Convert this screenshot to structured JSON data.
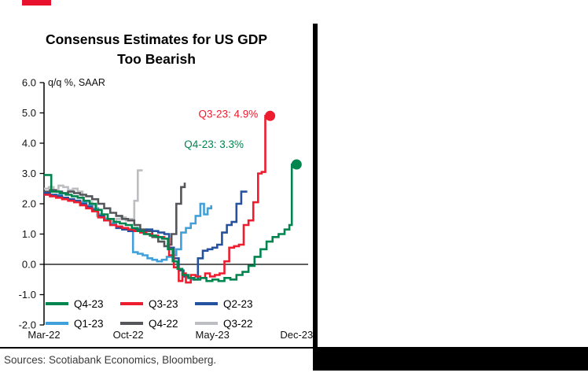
{
  "accent": {
    "red_mark_color": "#E8112D"
  },
  "footer": {
    "sources": "Sources: Scotiabank Economics, Bloomberg."
  },
  "chart_data": {
    "type": "line",
    "title": "Consensus Estimates for US GDP Too Bearish",
    "title_lines": [
      "Consensus Estimates for US GDP",
      "Too Bearish"
    ],
    "unit_label": "q/q %, SAAR",
    "ylim": [
      -2.0,
      6.0
    ],
    "yticks": [
      "6.0",
      "5.0",
      "4.0",
      "3.0",
      "2.0",
      "1.0",
      "0.0",
      "-1.0",
      "-2.0"
    ],
    "grid": false,
    "legend_position": "inside-bottom",
    "x_axis": {
      "tick_labels": [
        "Mar-22",
        "Oct-22",
        "May-23",
        "Dec-23"
      ],
      "tick_months": [
        0,
        7,
        14,
        21
      ],
      "months_total": 21,
      "note": "x = months since Mar-2022 (date the consensus estimate was recorded)"
    },
    "series": [
      {
        "name": "Q4-23",
        "color": "#00854F",
        "end_marker": true,
        "points": [
          [
            0,
            2.95
          ],
          [
            0.6,
            2.4
          ],
          [
            1.3,
            2.35
          ],
          [
            1.8,
            2.3
          ],
          [
            2.3,
            2.25
          ],
          [
            2.8,
            2.2
          ],
          [
            3.3,
            2.1
          ],
          [
            3.8,
            2.0
          ],
          [
            4.3,
            1.8
          ],
          [
            4.8,
            1.65
          ],
          [
            5.3,
            1.5
          ],
          [
            5.8,
            1.4
          ],
          [
            6.3,
            1.35
          ],
          [
            6.8,
            1.3
          ],
          [
            7.3,
            1.2
          ],
          [
            7.8,
            1.1
          ],
          [
            8.3,
            1.0
          ],
          [
            8.8,
            0.95
          ],
          [
            9.3,
            0.9
          ],
          [
            9.8,
            0.85
          ],
          [
            10.3,
            0.5
          ],
          [
            10.7,
            0.1
          ],
          [
            11.1,
            -0.15
          ],
          [
            11.5,
            -0.35
          ],
          [
            12,
            -0.45
          ],
          [
            12.5,
            -0.5
          ],
          [
            13,
            -0.45
          ],
          [
            13.5,
            -0.55
          ],
          [
            14,
            -0.5
          ],
          [
            14.5,
            -0.55
          ],
          [
            15,
            -0.45
          ],
          [
            15.5,
            -0.5
          ],
          [
            16,
            -0.35
          ],
          [
            16.5,
            -0.25
          ],
          [
            17,
            -0.05
          ],
          [
            17.5,
            0.25
          ],
          [
            18,
            0.5
          ],
          [
            18.5,
            0.75
          ],
          [
            19,
            0.9
          ],
          [
            19.5,
            1.0
          ],
          [
            20,
            1.15
          ],
          [
            20.4,
            1.3
          ],
          [
            20.6,
            3.3
          ],
          [
            21,
            3.3
          ]
        ]
      },
      {
        "name": "Q3-23",
        "color": "#ED1C2E",
        "end_marker": true,
        "points": [
          [
            0,
            2.3
          ],
          [
            0.5,
            2.25
          ],
          [
            1,
            2.2
          ],
          [
            1.5,
            2.15
          ],
          [
            2,
            2.1
          ],
          [
            2.5,
            2.05
          ],
          [
            3,
            1.95
          ],
          [
            3.5,
            1.85
          ],
          [
            4,
            1.75
          ],
          [
            4.5,
            1.55
          ],
          [
            5,
            1.45
          ],
          [
            5.5,
            1.3
          ],
          [
            6,
            1.25
          ],
          [
            6.5,
            1.2
          ],
          [
            7,
            1.15
          ],
          [
            7.5,
            1.1
          ],
          [
            8,
            1.05
          ],
          [
            8.5,
            1.0
          ],
          [
            9,
            0.95
          ],
          [
            9.5,
            0.9
          ],
          [
            10,
            0.85
          ],
          [
            10.4,
            0.3
          ],
          [
            10.8,
            -0.1
          ],
          [
            11.2,
            -0.55
          ],
          [
            11.5,
            -0.3
          ],
          [
            11.8,
            -0.6
          ],
          [
            12.2,
            -0.35
          ],
          [
            12.6,
            -0.4
          ],
          [
            13,
            -0.45
          ],
          [
            13.4,
            -0.3
          ],
          [
            13.8,
            -0.4
          ],
          [
            14.2,
            -0.35
          ],
          [
            14.6,
            -0.3
          ],
          [
            15,
            0.1
          ],
          [
            15.4,
            0.55
          ],
          [
            15.8,
            0.6
          ],
          [
            16.2,
            0.65
          ],
          [
            16.6,
            1.3
          ],
          [
            17,
            1.45
          ],
          [
            17.4,
            2.05
          ],
          [
            17.8,
            3.0
          ],
          [
            18.1,
            3.05
          ],
          [
            18.4,
            4.9
          ],
          [
            18.8,
            4.9
          ]
        ]
      },
      {
        "name": "Q2-23",
        "color": "#24529E",
        "end_marker": false,
        "points": [
          [
            0,
            2.35
          ],
          [
            0.5,
            2.3
          ],
          [
            1,
            2.25
          ],
          [
            1.5,
            2.2
          ],
          [
            2,
            2.15
          ],
          [
            2.5,
            2.1
          ],
          [
            3,
            2.0
          ],
          [
            3.5,
            1.9
          ],
          [
            4,
            1.8
          ],
          [
            4.5,
            1.6
          ],
          [
            5,
            1.45
          ],
          [
            5.5,
            1.3
          ],
          [
            6,
            1.2
          ],
          [
            6.5,
            1.15
          ],
          [
            7,
            1.1
          ],
          [
            7.5,
            1.15
          ],
          [
            8,
            1.1
          ],
          [
            8.5,
            1.15
          ],
          [
            9,
            1.1
          ],
          [
            9.5,
            1.05
          ],
          [
            10,
            1.0
          ],
          [
            10.4,
            0.55
          ],
          [
            10.8,
            0.2
          ],
          [
            11.2,
            -0.2
          ],
          [
            11.6,
            -0.4
          ],
          [
            12,
            -0.45
          ],
          [
            12.4,
            -0.5
          ],
          [
            12.8,
            0.2
          ],
          [
            13.2,
            0.45
          ],
          [
            13.6,
            0.5
          ],
          [
            14,
            0.55
          ],
          [
            14.4,
            0.65
          ],
          [
            14.8,
            1.05
          ],
          [
            15.2,
            1.3
          ],
          [
            15.6,
            1.4
          ],
          [
            16,
            2.0
          ],
          [
            16.4,
            2.4
          ],
          [
            16.9,
            2.4
          ]
        ]
      },
      {
        "name": "Q1-23",
        "color": "#41A0D9",
        "end_marker": false,
        "points": [
          [
            0,
            2.3
          ],
          [
            0.5,
            2.25
          ],
          [
            1,
            2.3
          ],
          [
            1.5,
            2.2
          ],
          [
            2,
            2.15
          ],
          [
            2.5,
            2.1
          ],
          [
            3,
            2.05
          ],
          [
            3.5,
            1.95
          ],
          [
            4,
            1.85
          ],
          [
            4.5,
            1.65
          ],
          [
            5,
            1.5
          ],
          [
            5.5,
            1.35
          ],
          [
            6,
            1.25
          ],
          [
            6.5,
            1.2
          ],
          [
            7,
            1.15
          ],
          [
            7.4,
            0.4
          ],
          [
            7.8,
            0.35
          ],
          [
            8.2,
            0.3
          ],
          [
            8.6,
            0.2
          ],
          [
            9,
            0.15
          ],
          [
            9.4,
            0.1
          ],
          [
            9.8,
            0.15
          ],
          [
            10.2,
            0.25
          ],
          [
            10.6,
            0.3
          ],
          [
            11,
            0.5
          ],
          [
            11.4,
            1.05
          ],
          [
            11.8,
            1.2
          ],
          [
            12.2,
            1.35
          ],
          [
            12.6,
            1.6
          ],
          [
            13,
            2.0
          ],
          [
            13.3,
            1.65
          ],
          [
            13.6,
            1.85
          ],
          [
            13.9,
            1.95
          ]
        ]
      },
      {
        "name": "Q4-22",
        "color": "#55565A",
        "end_marker": false,
        "points": [
          [
            0,
            2.4
          ],
          [
            0.5,
            2.45
          ],
          [
            1,
            2.4
          ],
          [
            1.5,
            2.35
          ],
          [
            2,
            2.4
          ],
          [
            2.5,
            2.35
          ],
          [
            3,
            2.3
          ],
          [
            3.5,
            2.25
          ],
          [
            4,
            2.15
          ],
          [
            4.5,
            2.0
          ],
          [
            5,
            1.85
          ],
          [
            5.5,
            1.7
          ],
          [
            6,
            1.6
          ],
          [
            6.5,
            1.5
          ],
          [
            7,
            1.45
          ],
          [
            7.5,
            1.3
          ],
          [
            8,
            1.15
          ],
          [
            8.5,
            1.1
          ],
          [
            9,
            0.9
          ],
          [
            9.5,
            0.75
          ],
          [
            10,
            0.6
          ],
          [
            10.3,
            0.65
          ],
          [
            10.6,
            1.0
          ],
          [
            11,
            2.0
          ],
          [
            11.4,
            2.55
          ],
          [
            11.7,
            2.7
          ]
        ]
      },
      {
        "name": "Q3-22",
        "color": "#BDBEC1",
        "end_marker": false,
        "points": [
          [
            0,
            2.5
          ],
          [
            0.4,
            2.55
          ],
          [
            0.8,
            2.45
          ],
          [
            1.2,
            2.6
          ],
          [
            1.6,
            2.55
          ],
          [
            2,
            2.45
          ],
          [
            2.4,
            2.5
          ],
          [
            2.8,
            2.4
          ],
          [
            3.2,
            2.1
          ],
          [
            3.6,
            2.05
          ],
          [
            4,
            1.95
          ],
          [
            4.4,
            1.6
          ],
          [
            4.8,
            1.55
          ],
          [
            5.2,
            1.45
          ],
          [
            5.6,
            1.4
          ],
          [
            6,
            1.5
          ],
          [
            6.4,
            1.55
          ],
          [
            6.8,
            1.45
          ],
          [
            7.2,
            1.5
          ],
          [
            7.5,
            2.1
          ],
          [
            7.8,
            3.1
          ],
          [
            8.2,
            3.1
          ]
        ]
      }
    ],
    "annotations": [
      {
        "text": "Q3-23: 4.9%",
        "color": "#ED1C2E",
        "x_month": 17.8,
        "value": 4.95,
        "anchor": "end"
      },
      {
        "text": "Q4-23: 3.3%",
        "color": "#00854F",
        "x_month": 16.6,
        "value": 3.95,
        "anchor": "end"
      }
    ]
  }
}
